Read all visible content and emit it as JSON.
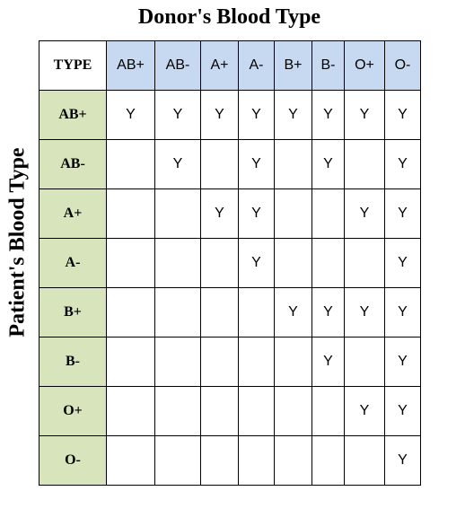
{
  "titles": {
    "top": "Donor's Blood Type",
    "side": "Patient's Blood Type"
  },
  "colors": {
    "header_fill": "#c6d9f0",
    "row_header_fill": "#d8e4bc",
    "border": "#000000"
  },
  "table": {
    "corner_label": "TYPE",
    "donor_columns": [
      "AB+",
      "AB-",
      "A+",
      "A-",
      "B+",
      "B-",
      "O+",
      "O-"
    ],
    "rows": [
      {
        "patient": "AB+",
        "cells": [
          "Y",
          "Y",
          "Y",
          "Y",
          "Y",
          "Y",
          "Y",
          "Y"
        ]
      },
      {
        "patient": "AB-",
        "cells": [
          "",
          "Y",
          "",
          "Y",
          "",
          "Y",
          "",
          "Y"
        ]
      },
      {
        "patient": "A+",
        "cells": [
          "",
          "",
          "Y",
          "Y",
          "",
          "",
          "Y",
          "Y"
        ]
      },
      {
        "patient": "A-",
        "cells": [
          "",
          "",
          "",
          "Y",
          "",
          "",
          "",
          "Y"
        ]
      },
      {
        "patient": "B+",
        "cells": [
          "",
          "",
          "",
          "",
          "Y",
          "Y",
          "Y",
          "Y"
        ]
      },
      {
        "patient": "B-",
        "cells": [
          "",
          "",
          "",
          "",
          "",
          "Y",
          "",
          "Y"
        ]
      },
      {
        "patient": "O+",
        "cells": [
          "",
          "",
          "",
          "",
          "",
          "",
          "Y",
          "Y"
        ]
      },
      {
        "patient": "O-",
        "cells": [
          "",
          "",
          "",
          "",
          "",
          "",
          "",
          "Y"
        ]
      }
    ]
  }
}
